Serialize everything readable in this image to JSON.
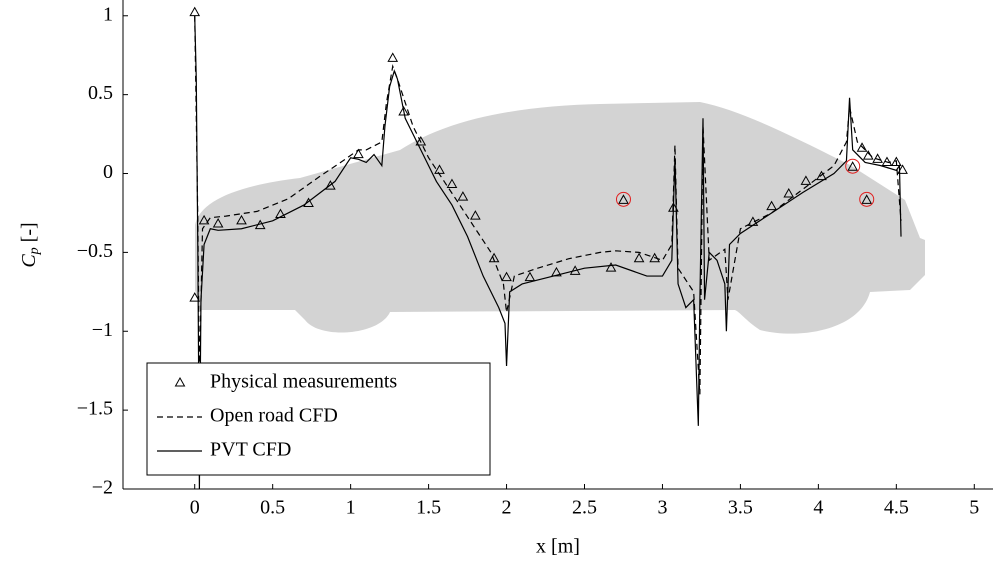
{
  "chart_data": {
    "type": "line",
    "xlabel": "x [m]",
    "ylabel": "C",
    "ylabel_sub": "p",
    "ylabel_unit": "[-]",
    "xlim": [
      -0.46,
      5.12
    ],
    "ylim": [
      -2,
      1.1
    ],
    "xticks": [
      0,
      0.5,
      1,
      1.5,
      2,
      2.5,
      3,
      3.5,
      4,
      4.5,
      5
    ],
    "yticks": [
      {
        "value": -2,
        "label": "−2"
      },
      {
        "value": -1.5,
        "label": "−1.5"
      },
      {
        "value": -1,
        "label": "−1"
      },
      {
        "value": -0.5,
        "label": "−0.5"
      },
      0,
      0.5,
      1
    ],
    "legend": "lower left",
    "series": [
      {
        "name": "Physical measurements",
        "style": "markers",
        "marker": "triangle",
        "color": "#000000",
        "highlight_color": "#e02020",
        "x": [
          0,
          0,
          0.06,
          0.15,
          0.3,
          0.42,
          0.55,
          0.73,
          0.87,
          1.05,
          1.27,
          1.34,
          1.45,
          1.57,
          1.65,
          1.72,
          1.8,
          1.92,
          2.0,
          2.15,
          2.32,
          2.44,
          2.67,
          2.75,
          2.85,
          2.95,
          3.07,
          3.58,
          3.7,
          3.81,
          3.92,
          4.02,
          4.22,
          4.28,
          4.31,
          4.32,
          4.38,
          4.44,
          4.5,
          4.54
        ],
        "values": [
          1.02,
          -0.79,
          -0.3,
          -0.32,
          -0.3,
          -0.33,
          -0.26,
          -0.19,
          -0.08,
          0.12,
          0.73,
          0.39,
          0.2,
          0.02,
          -0.07,
          -0.15,
          -0.27,
          -0.54,
          -0.66,
          -0.66,
          -0.63,
          -0.62,
          -0.6,
          -0.17,
          -0.54,
          -0.54,
          -0.22,
          -0.31,
          -0.21,
          -0.13,
          -0.05,
          -0.02,
          0.04,
          0.16,
          -0.17,
          0.11,
          0.09,
          0.07,
          0.07,
          0.02
        ],
        "circled": [
          false,
          false,
          false,
          false,
          false,
          false,
          false,
          false,
          false,
          false,
          false,
          false,
          false,
          false,
          false,
          false,
          false,
          false,
          false,
          false,
          false,
          false,
          false,
          true,
          false,
          false,
          false,
          false,
          false,
          false,
          false,
          false,
          true,
          false,
          true,
          false,
          false,
          false,
          false,
          false
        ]
      },
      {
        "name": "Open road CFD",
        "style": "dashed",
        "color": "#000000",
        "x": [
          0,
          0.02,
          0.03,
          0.05,
          0.1,
          0.2,
          0.4,
          0.6,
          0.8,
          0.95,
          1.05,
          1.1,
          1.2,
          1.23,
          1.27,
          1.3,
          1.4,
          1.5,
          1.6,
          1.7,
          1.8,
          1.9,
          1.98,
          2.0,
          2.05,
          2.2,
          2.4,
          2.6,
          2.7,
          2.85,
          3.0,
          3.06,
          3.08,
          3.1,
          3.2,
          3.24,
          3.26,
          3.3,
          3.4,
          3.42,
          3.5,
          3.7,
          3.9,
          4.1,
          4.18,
          4.2,
          4.25,
          4.35,
          4.45,
          4.5,
          4.53
        ],
        "values": [
          1.0,
          -0.3,
          -1.3,
          -0.35,
          -0.28,
          -0.27,
          -0.24,
          -0.16,
          -0.02,
          0.08,
          0.15,
          0.15,
          0.2,
          0.45,
          0.68,
          0.6,
          0.3,
          0.1,
          -0.05,
          -0.2,
          -0.35,
          -0.5,
          -0.7,
          -0.88,
          -0.65,
          -0.6,
          -0.54,
          -0.5,
          -0.49,
          -0.5,
          -0.55,
          -0.45,
          0.18,
          -0.6,
          -0.75,
          -1.4,
          0.3,
          -0.55,
          -0.48,
          -0.8,
          -0.35,
          -0.25,
          -0.1,
          0.05,
          0.2,
          0.42,
          0.2,
          0.1,
          0.07,
          0.08,
          -0.3
        ]
      },
      {
        "name": "PVT CFD",
        "style": "solid",
        "color": "#000000",
        "x": [
          0,
          0.01,
          0.02,
          0.03,
          0.04,
          0.06,
          0.1,
          0.15,
          0.3,
          0.5,
          0.7,
          0.9,
          1.0,
          1.05,
          1.1,
          1.15,
          1.2,
          1.22,
          1.25,
          1.28,
          1.3,
          1.35,
          1.45,
          1.55,
          1.65,
          1.75,
          1.85,
          1.95,
          1.99,
          2.0,
          2.02,
          2.1,
          2.3,
          2.5,
          2.7,
          2.9,
          3.0,
          3.06,
          3.08,
          3.1,
          3.15,
          3.2,
          3.23,
          3.24,
          3.26,
          3.27,
          3.3,
          3.35,
          3.4,
          3.41,
          3.43,
          3.5,
          3.7,
          3.9,
          4.1,
          4.18,
          4.2,
          4.22,
          4.3,
          4.4,
          4.5,
          4.52,
          4.53
        ],
        "values": [
          1.0,
          0.6,
          -0.5,
          -2.0,
          -0.8,
          -0.45,
          -0.35,
          -0.36,
          -0.35,
          -0.3,
          -0.2,
          -0.05,
          0.1,
          0.09,
          0.07,
          0.12,
          0.05,
          0.3,
          0.55,
          0.65,
          0.6,
          0.35,
          0.15,
          -0.05,
          -0.2,
          -0.4,
          -0.65,
          -0.85,
          -0.95,
          -1.22,
          -0.75,
          -0.7,
          -0.65,
          -0.6,
          -0.58,
          -0.65,
          -0.65,
          -0.55,
          0.1,
          -0.7,
          -0.85,
          -0.8,
          -1.6,
          -0.8,
          0.35,
          -0.8,
          -0.5,
          -0.55,
          -0.7,
          -1.0,
          -0.45,
          -0.38,
          -0.25,
          -0.12,
          0.0,
          0.08,
          0.48,
          0.15,
          0.07,
          0.05,
          0.02,
          0.05,
          -0.4
        ]
      }
    ]
  }
}
